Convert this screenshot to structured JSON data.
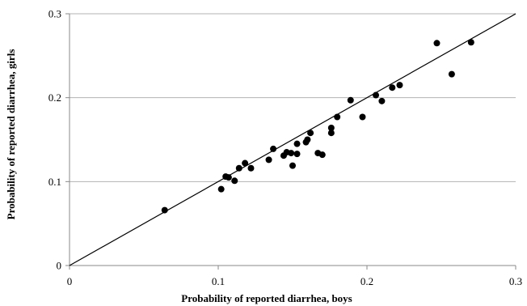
{
  "chart_data": {
    "type": "scatter",
    "title": "",
    "xlabel": "Probability of reported diarrhea, boys",
    "ylabel": "Probability of reported diarrhea, girls",
    "xlim": [
      0,
      0.3
    ],
    "ylim": [
      0,
      0.3
    ],
    "x_ticks": [
      "0",
      "0.1",
      "0.2",
      "0.3"
    ],
    "y_ticks": [
      "0",
      "0.1",
      "0.2",
      "0.3"
    ],
    "grid": "horizontal",
    "legend": "none",
    "reference_line": {
      "from": [
        0,
        0
      ],
      "to": [
        0.3,
        0.3
      ]
    },
    "series": [
      {
        "points": [
          {
            "x": 0.064,
            "y": 0.066
          },
          {
            "x": 0.102,
            "y": 0.091
          },
          {
            "x": 0.105,
            "y": 0.106
          },
          {
            "x": 0.107,
            "y": 0.105
          },
          {
            "x": 0.111,
            "y": 0.101
          },
          {
            "x": 0.114,
            "y": 0.116
          },
          {
            "x": 0.118,
            "y": 0.122
          },
          {
            "x": 0.122,
            "y": 0.116
          },
          {
            "x": 0.134,
            "y": 0.126
          },
          {
            "x": 0.137,
            "y": 0.139
          },
          {
            "x": 0.144,
            "y": 0.131
          },
          {
            "x": 0.146,
            "y": 0.135
          },
          {
            "x": 0.149,
            "y": 0.134
          },
          {
            "x": 0.15,
            "y": 0.119
          },
          {
            "x": 0.153,
            "y": 0.145
          },
          {
            "x": 0.153,
            "y": 0.133
          },
          {
            "x": 0.159,
            "y": 0.147
          },
          {
            "x": 0.16,
            "y": 0.15
          },
          {
            "x": 0.162,
            "y": 0.158
          },
          {
            "x": 0.167,
            "y": 0.134
          },
          {
            "x": 0.17,
            "y": 0.132
          },
          {
            "x": 0.176,
            "y": 0.164
          },
          {
            "x": 0.176,
            "y": 0.158
          },
          {
            "x": 0.18,
            "y": 0.177
          },
          {
            "x": 0.189,
            "y": 0.197
          },
          {
            "x": 0.197,
            "y": 0.177
          },
          {
            "x": 0.206,
            "y": 0.203
          },
          {
            "x": 0.21,
            "y": 0.196
          },
          {
            "x": 0.217,
            "y": 0.212
          },
          {
            "x": 0.222,
            "y": 0.215
          },
          {
            "x": 0.247,
            "y": 0.265
          },
          {
            "x": 0.257,
            "y": 0.228
          },
          {
            "x": 0.27,
            "y": 0.266
          }
        ]
      }
    ]
  },
  "colors": {
    "points": "#000000",
    "gridline": "#b3b3b3",
    "axis": "#888888",
    "reference_line": "#000000"
  }
}
